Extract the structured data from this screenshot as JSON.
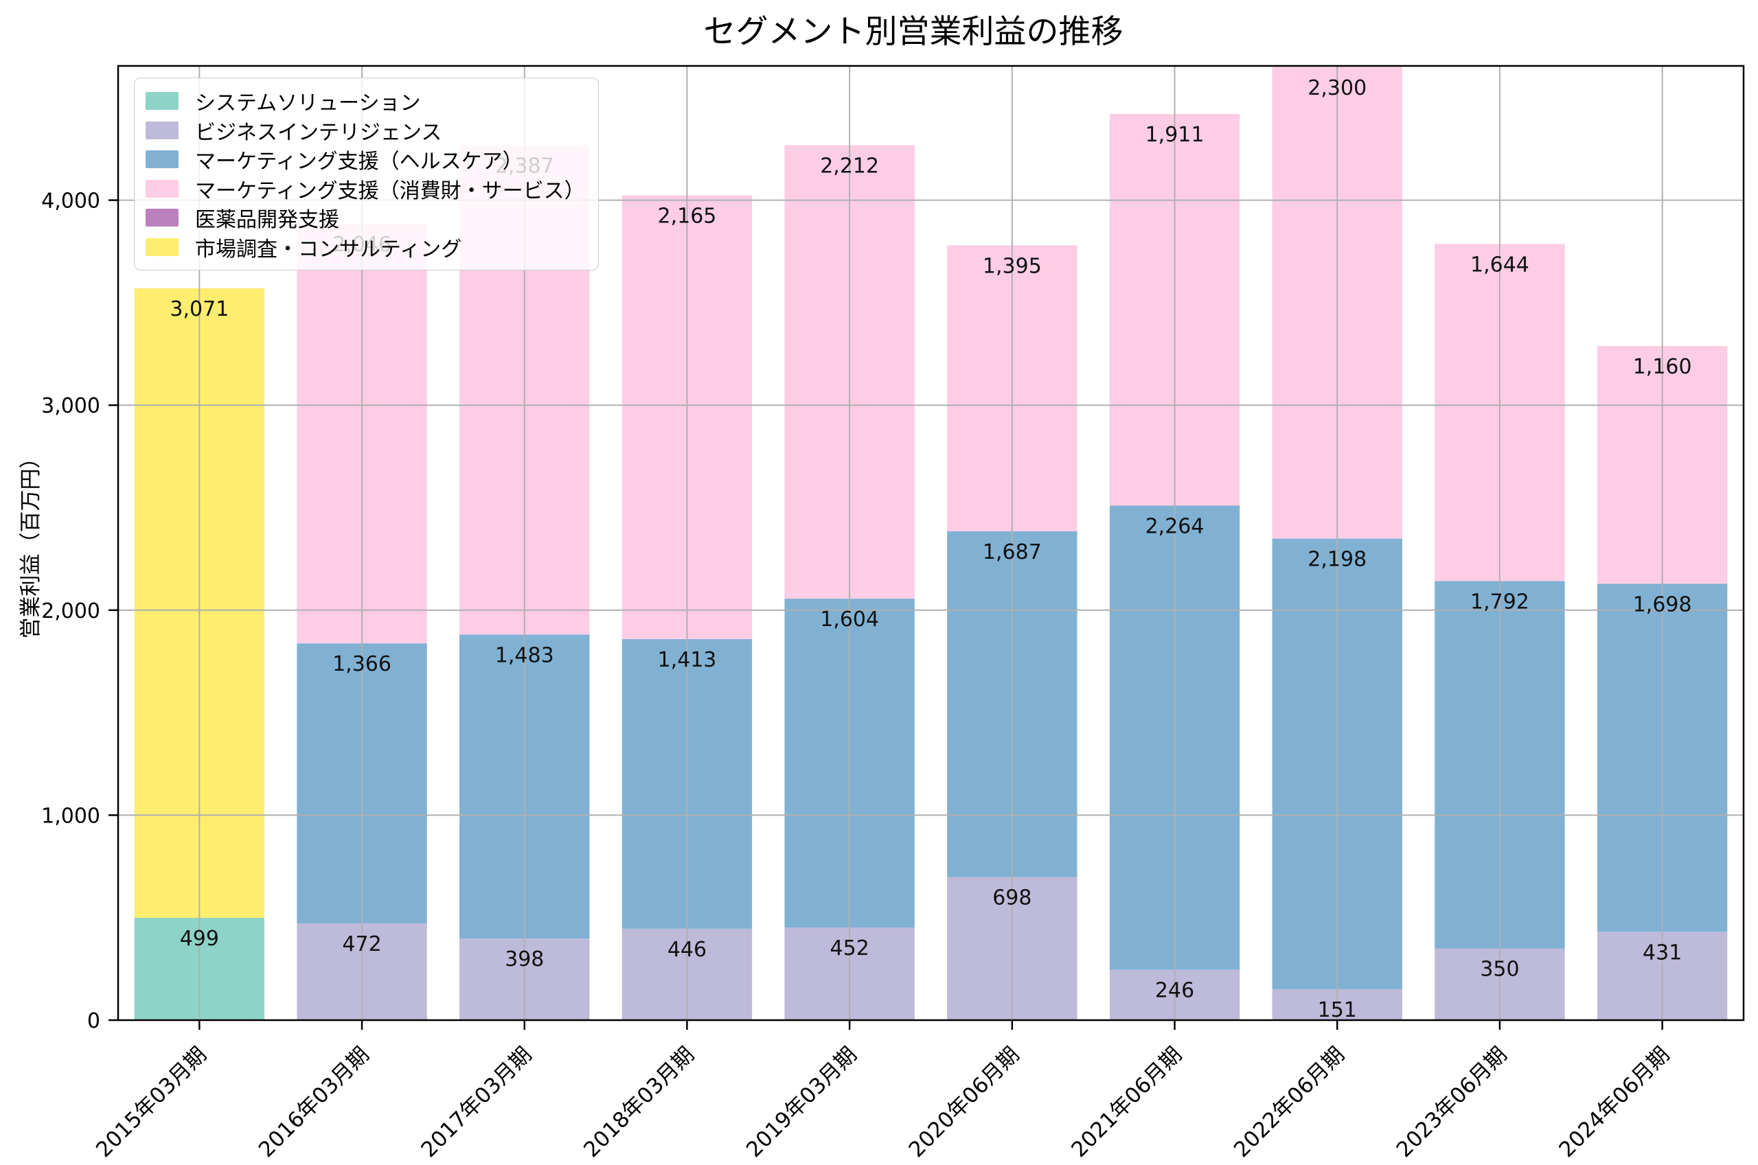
{
  "title": "セグメント別営業利益の推移",
  "axes": {
    "y_label": "営業利益（百万円）",
    "y_ticks": [
      0,
      1000,
      2000,
      3000,
      4000
    ],
    "y_tick_labels": [
      "0",
      "1,000",
      "2,000",
      "3,000",
      "4,000"
    ]
  },
  "colors": {
    "grid": "#b0b0b0",
    "spine": "#000000",
    "bar_label": "#111111",
    "legend_background": "rgba(255,255,255,0.8)"
  },
  "chart_data": {
    "type": "bar",
    "stacked": true,
    "title": "セグメント別営業利益の推移",
    "xlabel": "",
    "ylabel": "営業利益（百万円）",
    "ylim": [
      0,
      4655
    ],
    "grid": true,
    "legend_position": "upper left",
    "bar_value_labels": true,
    "categories": [
      "2015年03月期",
      "2016年03月期",
      "2017年03月期",
      "2018年03月期",
      "2019年03月期",
      "2020年06月期",
      "2021年06月期",
      "2022年06月期",
      "2023年06月期",
      "2024年06月期"
    ],
    "series": [
      {
        "name": "システムソリューション",
        "color": "#8dd3c7",
        "values": [
          499,
          0,
          0,
          0,
          0,
          0,
          0,
          0,
          0,
          0
        ]
      },
      {
        "name": "ビジネスインテリジェンス",
        "color": "#bebada",
        "values": [
          0,
          472,
          398,
          446,
          452,
          698,
          246,
          151,
          350,
          431
        ]
      },
      {
        "name": "マーケティング支援（ヘルスケア）",
        "color": "#80b1d3",
        "values": [
          0,
          1366,
          1483,
          1413,
          1604,
          1687,
          2264,
          2198,
          1792,
          1698
        ]
      },
      {
        "name": "マーケティング支援（消費財・サービス）",
        "color": "#fccde5",
        "values": [
          0,
          2046,
          2387,
          2165,
          2212,
          1395,
          1911,
          2300,
          1644,
          1160
        ]
      },
      {
        "name": "医薬品開発支援",
        "color": "#bc80bd",
        "values": [
          0,
          0,
          0,
          0,
          0,
          0,
          0,
          0,
          0,
          0
        ]
      },
      {
        "name": "市場調査・コンサルティング",
        "color": "#ffed6f",
        "values": [
          3071,
          0,
          0,
          0,
          0,
          0,
          0,
          0,
          0,
          0
        ]
      }
    ]
  }
}
